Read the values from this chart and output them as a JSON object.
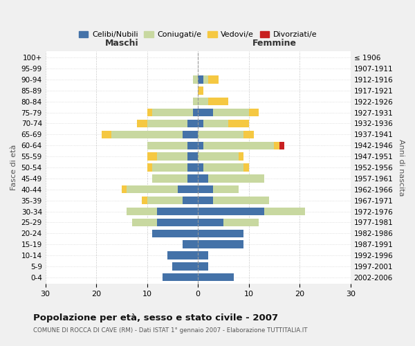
{
  "age_groups": [
    "100+",
    "95-99",
    "90-94",
    "85-89",
    "80-84",
    "75-79",
    "70-74",
    "65-69",
    "60-64",
    "55-59",
    "50-54",
    "45-49",
    "40-44",
    "35-39",
    "30-34",
    "25-29",
    "20-24",
    "15-19",
    "10-14",
    "5-9",
    "0-4"
  ],
  "birth_years": [
    "≤ 1906",
    "1907-1911",
    "1912-1916",
    "1917-1921",
    "1922-1926",
    "1927-1931",
    "1932-1936",
    "1937-1941",
    "1942-1946",
    "1947-1951",
    "1952-1956",
    "1957-1961",
    "1962-1966",
    "1967-1971",
    "1972-1976",
    "1977-1981",
    "1982-1986",
    "1987-1991",
    "1992-1996",
    "1997-2001",
    "2002-2006"
  ],
  "male": {
    "celibi": [
      0,
      0,
      0,
      0,
      0,
      1,
      2,
      3,
      2,
      2,
      2,
      2,
      4,
      3,
      8,
      8,
      9,
      3,
      6,
      5,
      7
    ],
    "coniugati": [
      0,
      0,
      1,
      0,
      1,
      8,
      8,
      14,
      8,
      6,
      7,
      7,
      10,
      7,
      6,
      5,
      0,
      0,
      0,
      0,
      0
    ],
    "vedovi": [
      0,
      0,
      0,
      0,
      0,
      1,
      2,
      2,
      0,
      2,
      1,
      0,
      1,
      1,
      0,
      0,
      0,
      0,
      0,
      0,
      0
    ],
    "divorziati": [
      0,
      0,
      0,
      0,
      0,
      0,
      0,
      0,
      0,
      0,
      0,
      0,
      0,
      0,
      0,
      0,
      0,
      0,
      0,
      0,
      0
    ]
  },
  "female": {
    "nubili": [
      0,
      0,
      1,
      0,
      0,
      3,
      1,
      0,
      1,
      0,
      1,
      2,
      3,
      3,
      13,
      5,
      9,
      9,
      2,
      2,
      7
    ],
    "coniugate": [
      0,
      0,
      1,
      0,
      2,
      7,
      5,
      9,
      14,
      8,
      8,
      11,
      5,
      11,
      8,
      7,
      0,
      0,
      0,
      0,
      0
    ],
    "vedove": [
      0,
      0,
      2,
      1,
      4,
      2,
      4,
      2,
      1,
      1,
      1,
      0,
      0,
      0,
      0,
      0,
      0,
      0,
      0,
      0,
      0
    ],
    "divorziate": [
      0,
      0,
      0,
      0,
      0,
      0,
      0,
      0,
      1,
      0,
      0,
      0,
      0,
      0,
      0,
      0,
      0,
      0,
      0,
      0,
      0
    ]
  },
  "colors": {
    "celibi_nubili": "#4472a8",
    "coniugati": "#c8d8a0",
    "vedovi": "#f5c842",
    "divorziati": "#c82020"
  },
  "xlim": 30,
  "title": "Popolazione per età, sesso e stato civile - 2007",
  "subtitle": "COMUNE DI ROCCA DI CAVE (RM) - Dati ISTAT 1° gennaio 2007 - Elaborazione TUTTITALIA.IT",
  "xlabel_left": "Maschi",
  "xlabel_right": "Femmine",
  "ylabel_left": "Fasce di età",
  "ylabel_right": "Anni di nascita",
  "legend_labels": [
    "Celibi/Nubili",
    "Coniugati/e",
    "Vedovi/e",
    "Divorziati/e"
  ],
  "background_color": "#f0f0f0",
  "plot_bg": "#ffffff",
  "grid_color": "#cccccc"
}
